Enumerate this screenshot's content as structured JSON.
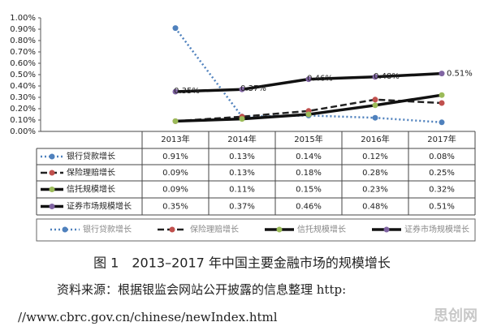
{
  "chart_data": {
    "type": "line",
    "categories": [
      "2013年",
      "2014年",
      "2015年",
      "2016年",
      "2017年"
    ],
    "series": [
      {
        "name": "银行贷款增长",
        "color": "#4f81bd",
        "line_color": "#4f81bd",
        "line_style": "dotted",
        "values": [
          0.91,
          0.13,
          0.14,
          0.12,
          0.08
        ],
        "value_labels": [
          "0.91%",
          "0.13%",
          "0.14%",
          "0.12%",
          "0.08%"
        ]
      },
      {
        "name": "保险理赔增长",
        "color": "#c0504d",
        "line_color": "#222222",
        "line_style": "dashed",
        "values": [
          0.09,
          0.13,
          0.18,
          0.28,
          0.25
        ],
        "value_labels": [
          "0.09%",
          "0.13%",
          "0.18%",
          "0.28%",
          "0.25%"
        ]
      },
      {
        "name": "信托规模增长",
        "color": "#9bbb59",
        "line_color": "#111111",
        "line_style": "solid",
        "values": [
          0.09,
          0.11,
          0.15,
          0.23,
          0.32
        ],
        "value_labels": [
          "0.09%",
          "0.11%",
          "0.15%",
          "0.23%",
          "0.32%"
        ]
      },
      {
        "name": "证券市场规模增长",
        "color": "#8064a2",
        "line_color": "#111111",
        "line_style": "solid",
        "show_labels": true,
        "values": [
          0.35,
          0.37,
          0.46,
          0.48,
          0.51
        ],
        "value_labels": [
          "0.35%",
          "0.37%",
          "0.46%",
          "0.48%",
          "0.51%"
        ]
      }
    ],
    "ylim": [
      0,
      1
    ],
    "yticks": [
      {
        "value": 0,
        "label": "0.00%"
      },
      {
        "value": 0.1,
        "label": "0.10%"
      },
      {
        "value": 0.2,
        "label": "0.20%"
      },
      {
        "value": 0.3,
        "label": "0.30%"
      },
      {
        "value": 0.4,
        "label": "0.40%"
      },
      {
        "value": 0.5,
        "label": "0.50%"
      },
      {
        "value": 0.6,
        "label": "0.60%"
      },
      {
        "value": 0.7,
        "label": "0.70%"
      },
      {
        "value": 0.8,
        "label": "0.80%"
      },
      {
        "value": 0.9,
        "label": "0.90%"
      },
      {
        "value": 1,
        "label": "1.00%"
      }
    ],
    "grid": false
  },
  "caption": "图 1　2013–2017 年中国主要金融市场的规模增长",
  "source": "资料来源：根据银监会网站公开披露的信息整理 http:",
  "source_url": "//www.cbrc.gov.cn/chinese/newIndex.html",
  "watermark": "思创网"
}
